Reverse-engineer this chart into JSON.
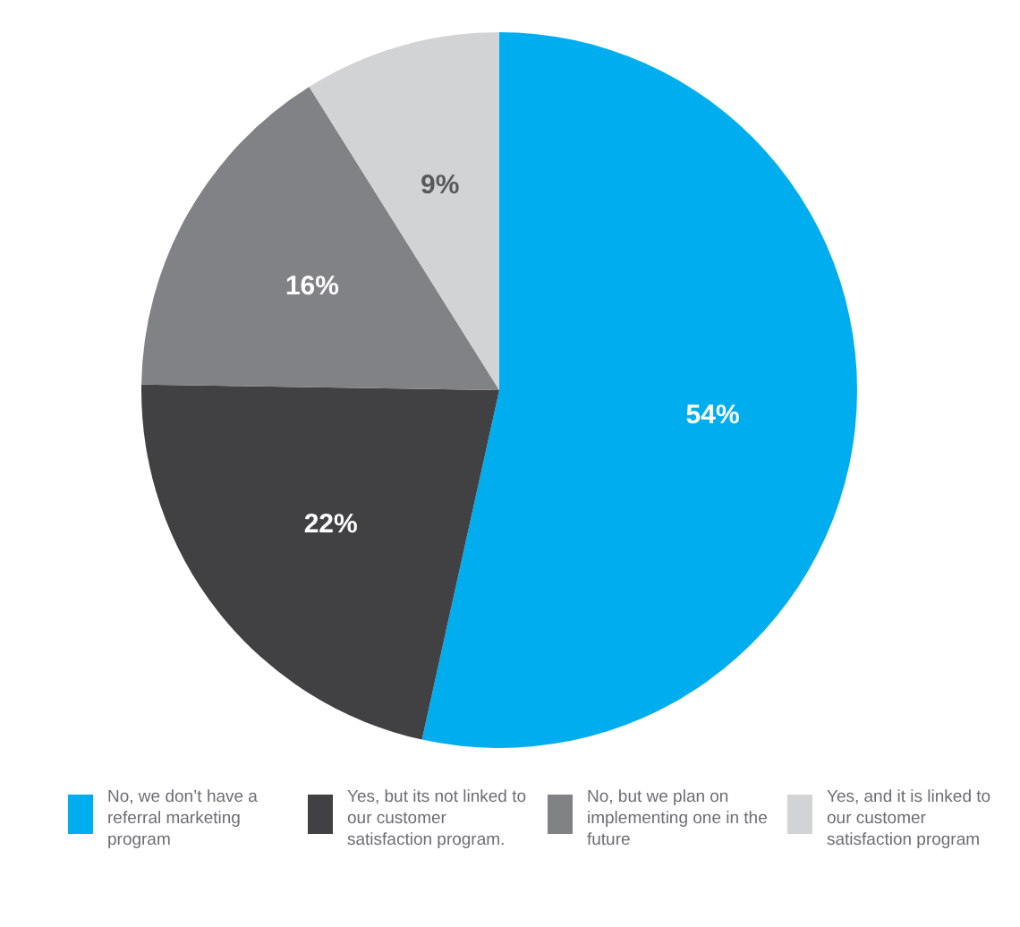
{
  "chart_data": {
    "type": "pie",
    "categories": [
      "No, we don’t have a referral marketing program",
      "Yes, but its not linked to our customer satisfaction program.",
      "No, but we plan on implementing one in the future",
      "Yes, and it is linked to our customer satisfaction program"
    ],
    "values": [
      54,
      22,
      16,
      9
    ],
    "colors": [
      "#00aeef",
      "#414042",
      "#808285",
      "#d1d3d4"
    ],
    "value_labels": [
      "54%",
      "22%",
      "16%",
      "9%"
    ],
    "legend": "bottom"
  }
}
